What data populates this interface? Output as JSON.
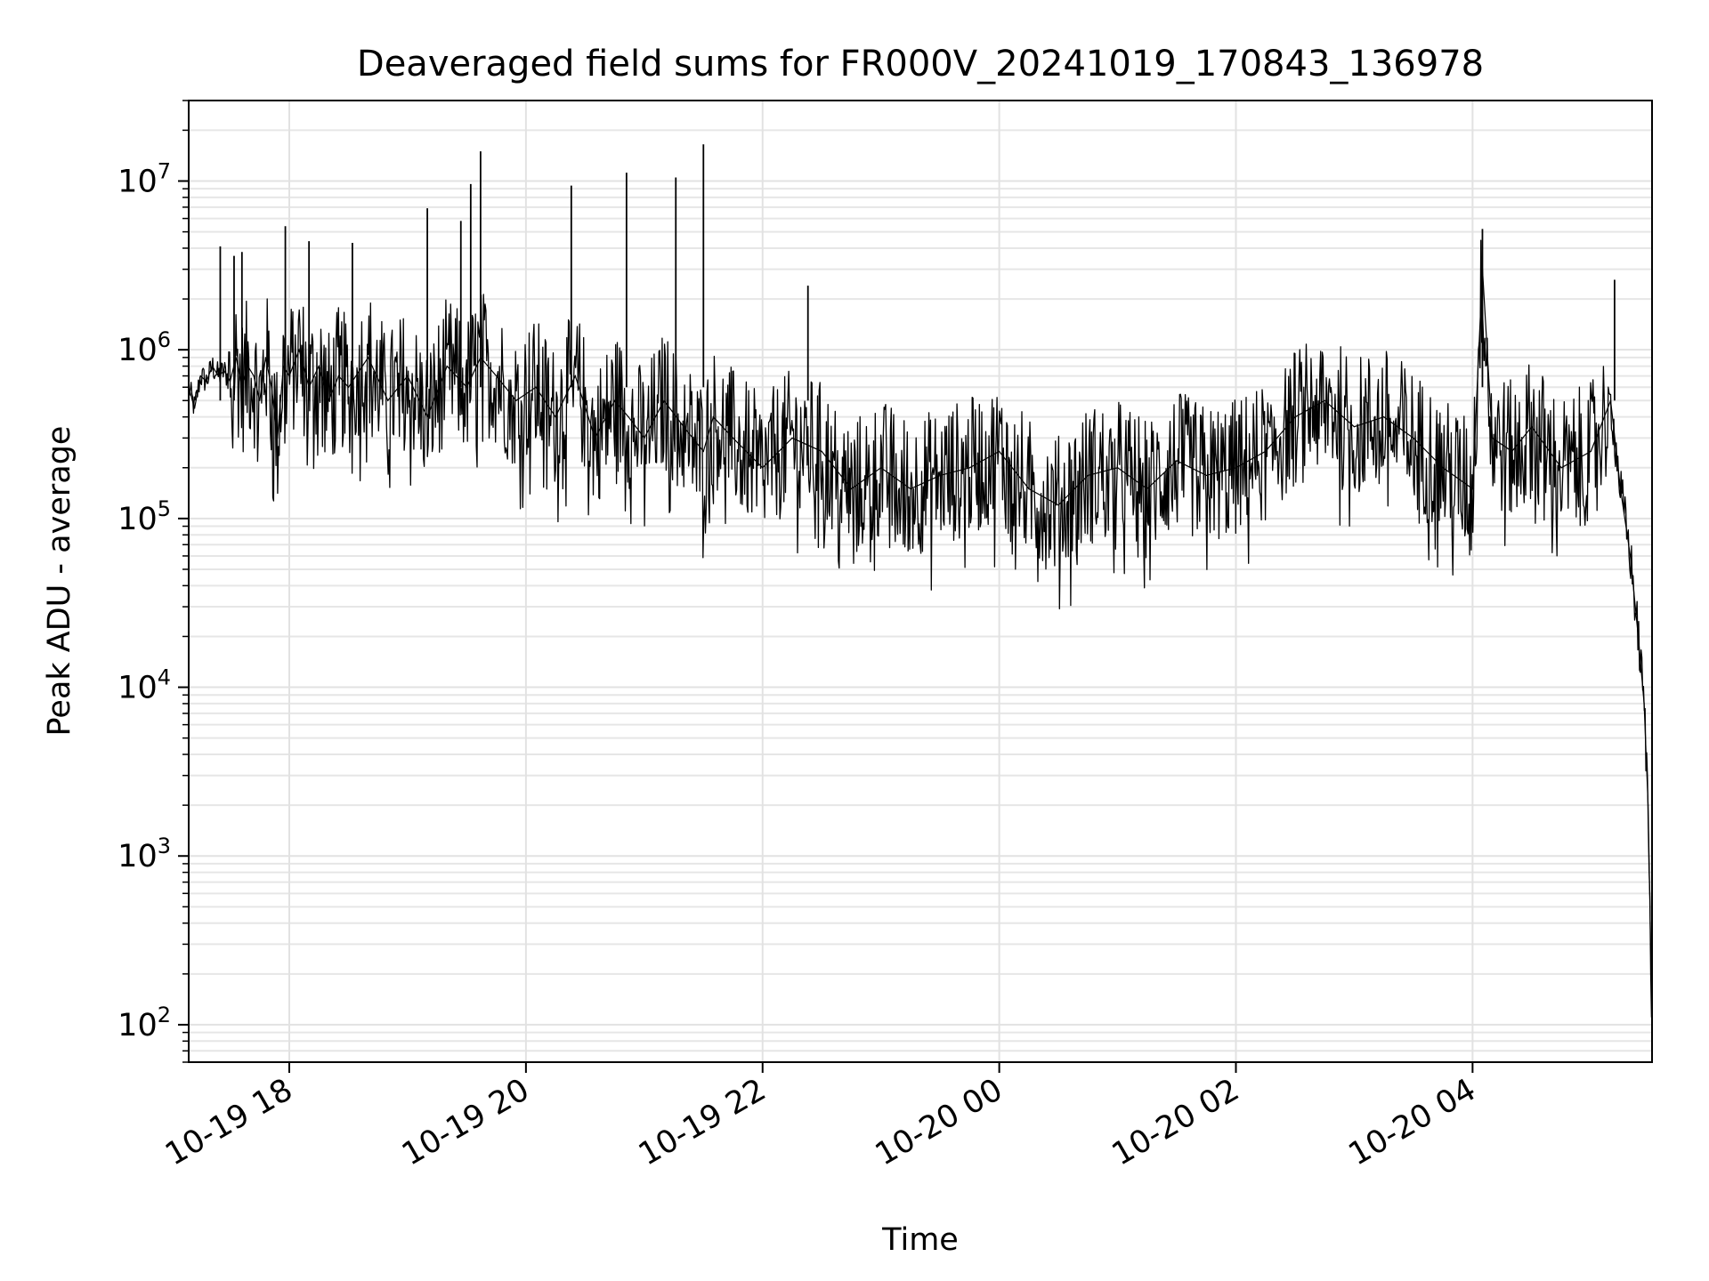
{
  "chart_data": {
    "type": "line",
    "title": "Deaveraged field sums for FR000V_20241019_170843_136978",
    "xlabel": "Time",
    "ylabel": "Peak ADU - average",
    "yscale": "log",
    "ylim": [
      60,
      30000000
    ],
    "xlim": [
      "2024-10-19 17:09",
      "2024-10-20 05:31"
    ],
    "x_ticks": [
      {
        "value": "2024-10-19 18:00",
        "label": "10-19 18"
      },
      {
        "value": "2024-10-19 20:00",
        "label": "10-19 20"
      },
      {
        "value": "2024-10-19 22:00",
        "label": "10-19 22"
      },
      {
        "value": "2024-10-20 00:00",
        "label": "10-20 00"
      },
      {
        "value": "2024-10-20 02:00",
        "label": "10-20 02"
      },
      {
        "value": "2024-10-20 04:00",
        "label": "10-20 04"
      }
    ],
    "y_ticks": [
      {
        "value": 100,
        "base": "10",
        "exp": "2"
      },
      {
        "value": 1000,
        "base": "10",
        "exp": "3"
      },
      {
        "value": 10000,
        "base": "10",
        "exp": "4"
      },
      {
        "value": 100000,
        "base": "10",
        "exp": "5"
      },
      {
        "value": 1000000,
        "base": "10",
        "exp": "6"
      },
      {
        "value": 10000000,
        "base": "10",
        "exp": "7"
      }
    ],
    "grid": true,
    "line_color": "#000000",
    "series": [
      {
        "x": [
          "2024-10-19 17:09",
          "2024-10-19 17:12",
          "2024-10-19 17:15",
          "2024-10-19 17:18",
          "2024-10-19 17:21",
          "2024-10-19 17:24",
          "2024-10-19 17:27",
          "2024-10-19 17:30",
          "2024-10-19 17:33",
          "2024-10-19 17:36",
          "2024-10-19 17:39",
          "2024-10-19 17:42",
          "2024-10-19 17:45",
          "2024-10-19 17:48",
          "2024-10-19 17:51",
          "2024-10-19 17:54",
          "2024-10-19 17:57",
          "2024-10-19 18:00",
          "2024-10-19 18:05",
          "2024-10-19 18:10",
          "2024-10-19 18:15",
          "2024-10-19 18:20",
          "2024-10-19 18:25",
          "2024-10-19 18:30",
          "2024-10-19 18:40",
          "2024-10-19 18:50",
          "2024-10-19 19:00",
          "2024-10-19 19:10",
          "2024-10-19 19:20",
          "2024-10-19 19:30",
          "2024-10-19 19:37",
          "2024-10-19 19:45",
          "2024-10-19 19:55",
          "2024-10-19 20:05",
          "2024-10-19 20:15",
          "2024-10-19 20:25",
          "2024-10-19 20:35",
          "2024-10-19 20:45",
          "2024-10-19 20:52",
          "2024-10-19 21:00",
          "2024-10-19 21:10",
          "2024-10-19 21:20",
          "2024-10-19 21:30",
          "2024-10-19 21:35",
          "2024-10-19 21:45",
          "2024-10-19 22:00",
          "2024-10-19 22:15",
          "2024-10-19 22:30",
          "2024-10-19 22:45",
          "2024-10-19 23:00",
          "2024-10-19 23:15",
          "2024-10-19 23:30",
          "2024-10-19 23:45",
          "2024-10-20 00:00",
          "2024-10-20 00:15",
          "2024-10-20 00:30",
          "2024-10-20 00:45",
          "2024-10-20 01:00",
          "2024-10-20 01:15",
          "2024-10-20 01:30",
          "2024-10-20 01:45",
          "2024-10-20 02:00",
          "2024-10-20 02:15",
          "2024-10-20 02:30",
          "2024-10-20 02:45",
          "2024-10-20 03:00",
          "2024-10-20 03:15",
          "2024-10-20 03:30",
          "2024-10-20 03:45",
          "2024-10-20 04:00",
          "2024-10-20 04:05",
          "2024-10-20 04:10",
          "2024-10-20 04:20",
          "2024-10-20 04:30",
          "2024-10-20 04:45",
          "2024-10-20 05:00",
          "2024-10-20 05:10",
          "2024-10-20 05:15",
          "2024-10-20 05:20",
          "2024-10-20 05:24",
          "2024-10-20 05:27",
          "2024-10-20 05:29",
          "2024-10-20 05:31"
        ],
        "y": [
          600000,
          450000,
          700000,
          650000,
          800000,
          700000,
          750000,
          650000,
          900000,
          600000,
          800000,
          700000,
          500000,
          900000,
          600000,
          300000,
          800000,
          700000,
          1000000,
          600000,
          800000,
          500000,
          700000,
          600000,
          900000,
          500000,
          700000,
          400000,
          800000,
          600000,
          900000,
          700000,
          500000,
          600000,
          400000,
          700000,
          300000,
          500000,
          400000,
          300000,
          500000,
          350000,
          250000,
          400000,
          300000,
          200000,
          300000,
          250000,
          150000,
          200000,
          150000,
          180000,
          200000,
          250000,
          150000,
          120000,
          180000,
          200000,
          150000,
          220000,
          180000,
          200000,
          250000,
          400000,
          500000,
          350000,
          400000,
          300000,
          200000,
          150000,
          3000000,
          300000,
          250000,
          350000,
          200000,
          250000,
          500000,
          150000,
          60000,
          20000,
          8000,
          2000,
          100
        ]
      }
    ],
    "spikes": [
      {
        "x": "2024-10-19 17:25",
        "y": 4100000
      },
      {
        "x": "2024-10-19 17:32",
        "y": 3600000
      },
      {
        "x": "2024-10-19 17:36",
        "y": 3800000
      },
      {
        "x": "2024-10-19 17:58",
        "y": 5400000
      },
      {
        "x": "2024-10-19 18:10",
        "y": 4400000
      },
      {
        "x": "2024-10-19 18:32",
        "y": 4300000
      },
      {
        "x": "2024-10-19 19:10",
        "y": 6900000
      },
      {
        "x": "2024-10-19 19:27",
        "y": 5800000
      },
      {
        "x": "2024-10-19 19:32",
        "y": 9600000
      },
      {
        "x": "2024-10-19 19:37",
        "y": 15000000
      },
      {
        "x": "2024-10-19 20:23",
        "y": 9400000
      },
      {
        "x": "2024-10-19 20:51",
        "y": 11200000
      },
      {
        "x": "2024-10-19 21:16",
        "y": 10500000
      },
      {
        "x": "2024-10-19 21:30",
        "y": 16500000
      },
      {
        "x": "2024-10-19 22:23",
        "y": 2400000
      },
      {
        "x": "2024-10-20 04:05",
        "y": 5200000
      },
      {
        "x": "2024-10-20 05:12",
        "y": 2600000
      }
    ]
  }
}
